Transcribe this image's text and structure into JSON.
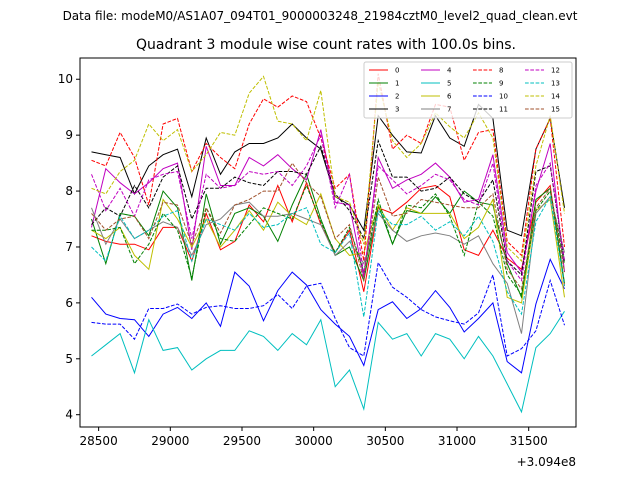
{
  "figure": {
    "suptitle": "Data file: modeM0/AS1A07_094T01_9000003248_21984cztM0_level2_quad_clean.evt"
  },
  "chart_data": {
    "type": "line",
    "title": "Quadrant 3 module wise count rates with 100.0s bins.",
    "xlabel": "",
    "ylabel": "",
    "x_offset_label": "+3.094e8",
    "xlim": [
      28370,
      31830
    ],
    "ylim": [
      3.78,
      10.38
    ],
    "x_ticks": [
      28500,
      29000,
      29500,
      30000,
      30500,
      31000,
      31500
    ],
    "y_ticks": [
      4,
      5,
      6,
      7,
      8,
      9,
      10
    ],
    "grid": false,
    "legend_position": "top-right",
    "legend_columns": 4,
    "x": [
      28450,
      28550,
      28650,
      28750,
      28850,
      28950,
      29050,
      29150,
      29250,
      29350,
      29450,
      29550,
      29650,
      29750,
      29850,
      29950,
      30050,
      30150,
      30250,
      30350,
      30450,
      30550,
      30650,
      30750,
      30850,
      30950,
      31050,
      31150,
      31250,
      31350,
      31450,
      31550,
      31650,
      31750
    ],
    "series": [
      {
        "name": "0",
        "color": "#ff0000",
        "dash": "solid",
        "values": [
          7.2,
          7.1,
          7.05,
          7.05,
          6.95,
          7.35,
          7.35,
          6.75,
          7.6,
          6.95,
          7.1,
          7.75,
          7.45,
          8.1,
          7.45,
          8.15,
          7.4,
          6.9,
          7.3,
          6.2,
          7.7,
          7.6,
          7.8,
          8.05,
          8.1,
          7.9,
          6.95,
          6.85,
          7.3,
          6.8,
          6.6,
          7.8,
          8.1,
          6.3
        ]
      },
      {
        "name": "1",
        "color": "#008000",
        "dash": "solid",
        "values": [
          7.5,
          6.7,
          7.6,
          7.55,
          7.2,
          8.0,
          7.7,
          6.4,
          7.95,
          7.05,
          7.6,
          7.7,
          7.55,
          7.1,
          7.75,
          8.3,
          7.5,
          6.85,
          7.0,
          6.4,
          7.75,
          7.05,
          7.65,
          7.6,
          7.9,
          7.6,
          8.0,
          7.8,
          7.75,
          6.7,
          6.1,
          7.85,
          8.05,
          6.35
        ]
      },
      {
        "name": "2",
        "color": "#0000ff",
        "dash": "solid",
        "values": [
          6.1,
          5.8,
          5.72,
          5.7,
          5.4,
          5.8,
          5.92,
          5.72,
          6.0,
          5.58,
          6.55,
          6.3,
          5.68,
          6.22,
          6.55,
          6.32,
          5.88,
          5.62,
          5.4,
          4.88,
          5.88,
          6.02,
          5.72,
          5.9,
          6.22,
          5.92,
          5.48,
          5.72,
          6.0,
          4.95,
          4.75,
          5.98,
          6.78,
          6.25
        ]
      },
      {
        "name": "3",
        "color": "#000000",
        "dash": "solid",
        "values": [
          8.7,
          8.65,
          8.6,
          7.95,
          8.45,
          8.65,
          8.75,
          7.9,
          8.95,
          8.3,
          8.7,
          8.85,
          8.85,
          8.95,
          9.2,
          8.95,
          8.75,
          7.9,
          7.75,
          7.3,
          9.35,
          9.0,
          8.7,
          8.68,
          9.35,
          8.95,
          8.8,
          9.55,
          9.3,
          7.3,
          7.2,
          8.75,
          9.3,
          7.7
        ]
      },
      {
        "name": "4",
        "color": "#c000c0",
        "dash": "solid",
        "values": [
          7.35,
          8.4,
          8.15,
          7.95,
          8.15,
          8.4,
          8.5,
          6.95,
          8.8,
          8.1,
          8.1,
          8.6,
          8.45,
          8.65,
          8.4,
          8.2,
          9.1,
          7.8,
          7.75,
          6.45,
          8.6,
          8.05,
          8.2,
          8.3,
          8.5,
          8.25,
          7.8,
          7.85,
          8.65,
          6.9,
          6.55,
          8.0,
          8.85,
          6.55
        ]
      },
      {
        "name": "5",
        "color": "#00bfbf",
        "dash": "solid",
        "values": [
          5.05,
          5.25,
          5.45,
          4.75,
          5.7,
          5.15,
          5.2,
          4.8,
          5.0,
          5.15,
          5.15,
          5.5,
          5.4,
          5.15,
          5.45,
          5.25,
          5.7,
          4.5,
          4.8,
          4.1,
          5.65,
          5.35,
          5.45,
          5.05,
          5.45,
          5.35,
          5.0,
          5.4,
          5.05,
          4.55,
          4.05,
          5.2,
          5.45,
          5.85
        ]
      },
      {
        "name": "6",
        "color": "#bfbf00",
        "dash": "solid",
        "values": [
          7.3,
          7.15,
          7.35,
          6.85,
          6.6,
          7.85,
          7.5,
          7.0,
          7.5,
          7.0,
          7.3,
          7.65,
          7.3,
          7.8,
          7.55,
          7.4,
          7.95,
          7.15,
          6.85,
          6.9,
          7.75,
          7.3,
          7.7,
          7.6,
          7.6,
          7.6,
          7.15,
          7.35,
          7.85,
          6.1,
          6.0,
          7.65,
          7.85,
          6.1
        ]
      },
      {
        "name": "7",
        "color": "#808080",
        "dash": "solid",
        "values": [
          7.7,
          7.05,
          7.5,
          7.15,
          7.3,
          7.45,
          7.35,
          6.85,
          7.4,
          7.5,
          7.75,
          7.8,
          7.55,
          7.55,
          7.6,
          7.5,
          7.4,
          6.85,
          7.1,
          6.7,
          7.6,
          7.3,
          7.1,
          7.2,
          7.25,
          7.2,
          7.05,
          7.2,
          6.7,
          6.35,
          5.45,
          7.6,
          7.9,
          6.9
        ]
      },
      {
        "name": "8",
        "color": "#ff0000",
        "dash": "dashed",
        "values": [
          8.55,
          8.45,
          9.05,
          8.6,
          7.75,
          9.2,
          9.3,
          8.35,
          8.85,
          8.6,
          8.4,
          9.2,
          9.65,
          9.5,
          9.7,
          9.6,
          8.95,
          8.05,
          8.3,
          6.75,
          10.1,
          8.75,
          9.0,
          8.85,
          9.55,
          9.5,
          8.55,
          9.05,
          9.1,
          7.1,
          6.85,
          8.75,
          9.3,
          7.0
        ]
      },
      {
        "name": "9",
        "color": "#008000",
        "dash": "dashed",
        "values": [
          7.3,
          7.3,
          7.35,
          6.7,
          7.05,
          7.6,
          7.3,
          6.45,
          7.7,
          7.15,
          7.1,
          7.4,
          7.7,
          7.6,
          7.5,
          8.1,
          7.45,
          6.9,
          7.35,
          6.55,
          7.85,
          7.05,
          7.75,
          7.7,
          7.95,
          7.55,
          6.85,
          7.8,
          7.55,
          6.5,
          6.15,
          7.65,
          8.0,
          6.7
        ]
      },
      {
        "name": "10",
        "color": "#0000ff",
        "dash": "dashed",
        "values": [
          5.65,
          5.62,
          5.62,
          5.35,
          5.9,
          5.9,
          5.98,
          5.8,
          5.92,
          5.95,
          5.9,
          5.9,
          5.95,
          6.15,
          5.9,
          6.3,
          6.35,
          5.72,
          5.2,
          5.05,
          6.72,
          6.28,
          6.1,
          5.88,
          5.75,
          5.68,
          5.62,
          5.82,
          6.5,
          5.05,
          5.18,
          5.5,
          6.4,
          5.6
        ]
      },
      {
        "name": "11",
        "color": "#000000",
        "dash": "dashed",
        "values": [
          7.4,
          7.7,
          7.55,
          8.1,
          7.7,
          8.25,
          8.45,
          7.5,
          8.05,
          8.05,
          8.25,
          8.15,
          8.1,
          8.35,
          8.35,
          8.3,
          8.8,
          7.95,
          7.65,
          7.15,
          8.9,
          8.25,
          8.25,
          8.0,
          8.05,
          8.25,
          7.95,
          7.8,
          8.2,
          6.75,
          6.5,
          8.35,
          8.45,
          6.75
        ]
      },
      {
        "name": "12",
        "color": "#c000c0",
        "dash": "dashed",
        "values": [
          8.3,
          7.65,
          8.05,
          7.55,
          8.2,
          8.3,
          8.35,
          7.15,
          8.3,
          8.05,
          8.1,
          8.35,
          8.3,
          8.35,
          8.1,
          8.45,
          9.0,
          7.7,
          8.3,
          6.5,
          8.45,
          8.2,
          7.95,
          8.1,
          8.3,
          8.2,
          7.85,
          7.75,
          8.5,
          6.75,
          6.4,
          8.1,
          8.5,
          6.75
        ]
      },
      {
        "name": "13",
        "color": "#00bfbf",
        "dash": "dashed",
        "values": [
          7.0,
          6.75,
          7.55,
          7.15,
          7.3,
          7.55,
          7.65,
          6.75,
          7.5,
          7.4,
          7.3,
          7.6,
          7.35,
          7.4,
          7.6,
          7.7,
          7.05,
          6.9,
          7.25,
          5.75,
          7.65,
          7.4,
          7.4,
          7.55,
          7.3,
          7.45,
          7.2,
          7.55,
          7.1,
          6.2,
          5.8,
          7.45,
          7.9,
          6.3
        ]
      },
      {
        "name": "14",
        "color": "#bfbf00",
        "dash": "dashed",
        "values": [
          8.05,
          7.95,
          8.35,
          8.55,
          9.2,
          8.9,
          9.1,
          8.35,
          8.65,
          9.05,
          9.0,
          9.75,
          10.05,
          9.25,
          9.2,
          8.9,
          9.8,
          7.9,
          7.8,
          7.05,
          9.95,
          8.9,
          8.6,
          8.85,
          9.4,
          9.15,
          8.95,
          9.4,
          8.95,
          7.0,
          6.75,
          8.45,
          9.35,
          7.6
        ]
      },
      {
        "name": "15",
        "color": "#a0522d",
        "dash": "dashed",
        "values": [
          7.6,
          7.3,
          7.5,
          7.55,
          7.15,
          7.8,
          7.75,
          7.05,
          7.7,
          7.25,
          7.75,
          7.85,
          8.0,
          8.0,
          8.5,
          8.15,
          7.9,
          7.15,
          7.4,
          6.4,
          8.25,
          7.55,
          7.6,
          7.85,
          7.8,
          7.75,
          7.7,
          7.7,
          7.95,
          6.6,
          6.25,
          7.7,
          8.05,
          6.55
        ]
      }
    ]
  }
}
